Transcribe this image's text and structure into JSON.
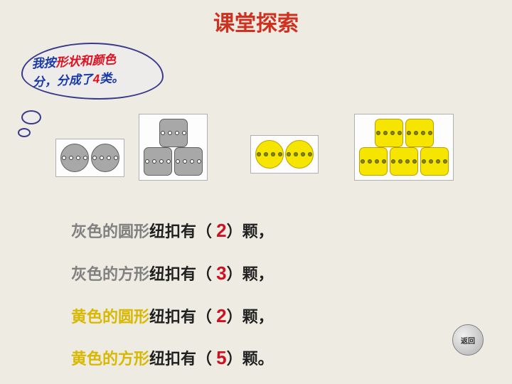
{
  "title": "课堂探索",
  "bubble": {
    "p1a": "我按",
    "p1b": "形状和颜色",
    "p2a": "分，分成了",
    "p2b": "4",
    "p2c": "类。"
  },
  "lines": [
    {
      "c1": "灰色的圆形",
      "c2": "纽扣有（",
      "n": "2",
      "c3": "）颗，",
      "cls": "g"
    },
    {
      "c1": "灰色的方形",
      "c2": "纽扣有（",
      "n": "3",
      "c3": "）颗，",
      "cls": "g"
    },
    {
      "c1": "黄色的圆形",
      "c2": "纽扣有（",
      "n": "2",
      "c3": "）颗，",
      "cls": "y"
    },
    {
      "c1": "黄色的方形",
      "c2": "纽扣有（",
      "n": "5",
      "c3": "）颗。",
      "cls": "y"
    }
  ],
  "back": "返回"
}
